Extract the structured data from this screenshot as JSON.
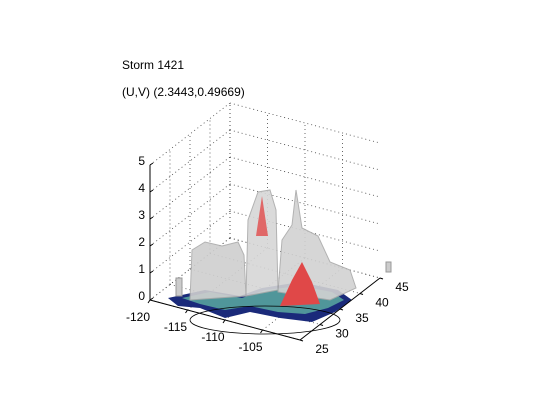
{
  "chart_data": {
    "type": "surface3d",
    "title": "Storm 1421",
    "subtitle": "(U,V) (2.3443,0.49669)",
    "xlim": [
      -120,
      -100
    ],
    "xticks": [
      -120,
      -115,
      -110,
      -105
    ],
    "ylim": [
      25,
      45
    ],
    "yticks": [
      25,
      30,
      35,
      40,
      45
    ],
    "zlim": [
      0,
      5
    ],
    "zticks": [
      0,
      1,
      2,
      3,
      4,
      5
    ],
    "grid": true
  }
}
